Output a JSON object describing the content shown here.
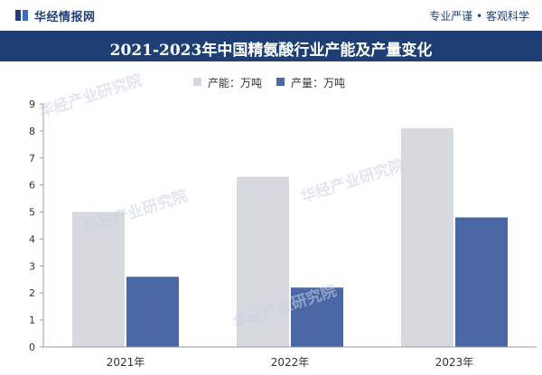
{
  "header": {
    "brand": "华经情报网",
    "slogan": "专业严谨 • 客观科学"
  },
  "watermark": "华经产业研究院",
  "colors": {
    "title_bg": "#1e3f73",
    "capacity": "#d6d9dd",
    "production": "#4a68a6",
    "brand_text": "#1f3f7a"
  },
  "chart_data": {
    "type": "bar",
    "title": "2021-2023年中国精氨酸行业产能及产量变化",
    "categories": [
      "2021年",
      "2022年",
      "2023年"
    ],
    "series": [
      {
        "name": "产能：万吨",
        "values": [
          5.0,
          6.3,
          8.1
        ]
      },
      {
        "name": "产量：万吨",
        "values": [
          2.6,
          2.2,
          4.8
        ]
      }
    ],
    "ylim": [
      0,
      9
    ],
    "yticks": [
      0,
      1,
      2,
      3,
      4,
      5,
      6,
      7,
      8,
      9
    ],
    "xlabel": "",
    "ylabel": "",
    "legend_position": "top"
  }
}
